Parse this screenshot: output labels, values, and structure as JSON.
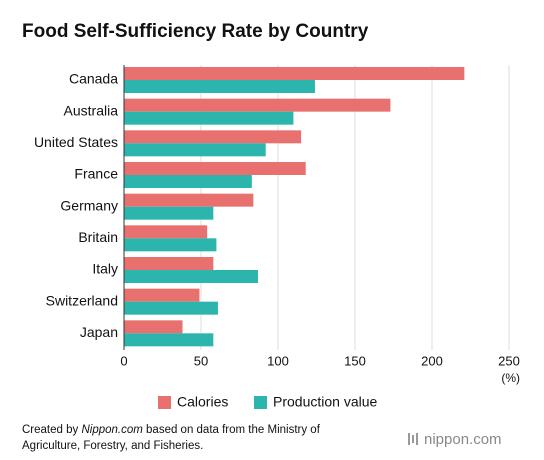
{
  "chart_data": {
    "type": "hbar",
    "title": "Food Self-Sufficiency Rate by Country",
    "categories": [
      "Canada",
      "Australia",
      "United States",
      "France",
      "Germany",
      "Britain",
      "Italy",
      "Switzerland",
      "Japan"
    ],
    "series": [
      {
        "name": "Calories",
        "color": "#e8716f",
        "values": [
          221,
          173,
          115,
          118,
          84,
          54,
          58,
          49,
          38
        ]
      },
      {
        "name": "Production value",
        "color": "#2bb5ac",
        "values": [
          124,
          110,
          92,
          83,
          58,
          60,
          87,
          61,
          58
        ]
      }
    ],
    "xlim": [
      0,
      250
    ],
    "xticks": [
      0,
      50,
      100,
      150,
      200,
      250
    ],
    "x_unit": "(%)",
    "grid": true
  },
  "footer": {
    "prefix": "Created by ",
    "source": "Nippon.com",
    "rest": " based on data from the Ministry of",
    "line2": "Agriculture, Forestry, and Fisheries."
  },
  "logo": "nippon.com"
}
